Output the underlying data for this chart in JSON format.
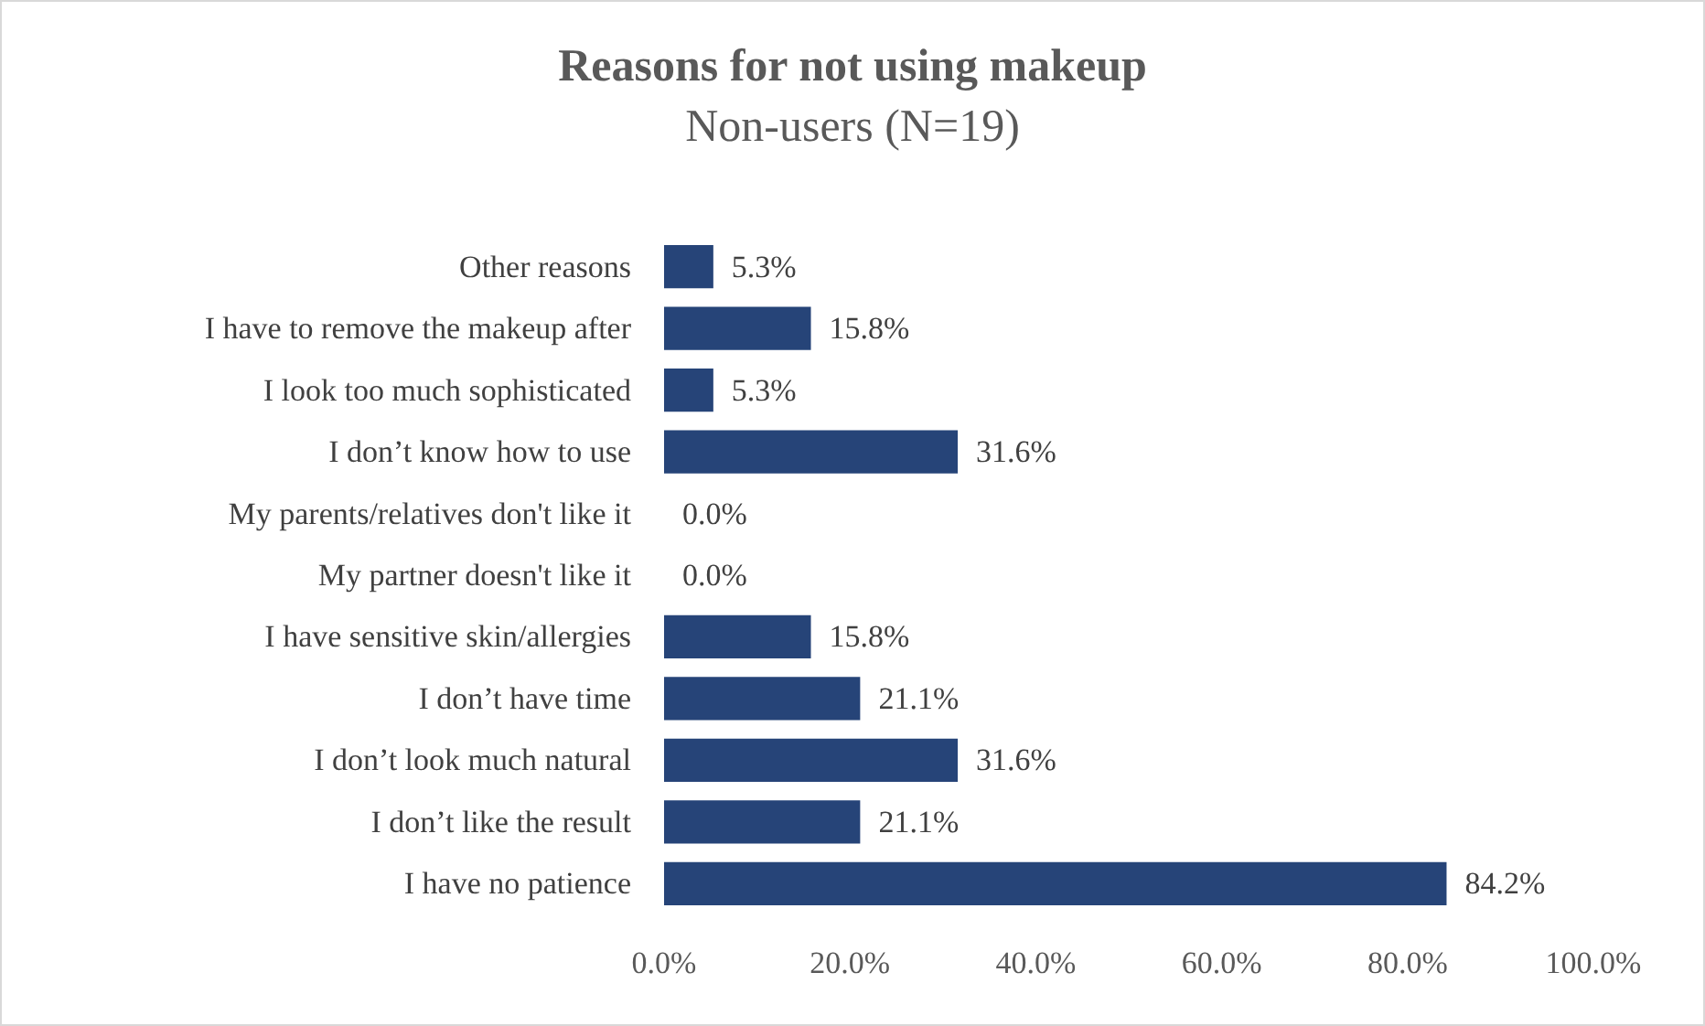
{
  "chart_data": {
    "type": "bar",
    "orientation": "horizontal",
    "title": "Reasons for not using makeup",
    "subtitle": "Non-users (N=19)",
    "categories": [
      "Other reasons",
      "I have to remove the makeup after",
      "I look too much sophisticated",
      "I don’t know how to use",
      "My parents/relatives don't like it",
      "My partner doesn't like it",
      "I have sensitive skin/allergies",
      "I don’t have time",
      "I don’t look much natural",
      "I don’t like the result",
      "I have no patience"
    ],
    "values": [
      5.3,
      15.8,
      5.3,
      31.6,
      0,
      0,
      15.8,
      21.1,
      31.6,
      21.1,
      84.2
    ],
    "value_labels": [
      "5.3%",
      "15.8%",
      "5.3%",
      "31.6%",
      "0.0%",
      "0.0%",
      "15.8%",
      "21.1%",
      "31.6%",
      "21.1%",
      "84.2%"
    ],
    "color": "#264478",
    "xlim": [
      0,
      100
    ],
    "xticks": [
      {
        "value": 0,
        "label": "0.0%"
      },
      {
        "value": 20,
        "label": "20.0%"
      },
      {
        "value": 40,
        "label": "40.0%"
      },
      {
        "value": 60,
        "label": "60.0%"
      },
      {
        "value": 80,
        "label": "80.0%"
      },
      {
        "value": 100,
        "label": "100.0%"
      }
    ],
    "grid": false
  }
}
